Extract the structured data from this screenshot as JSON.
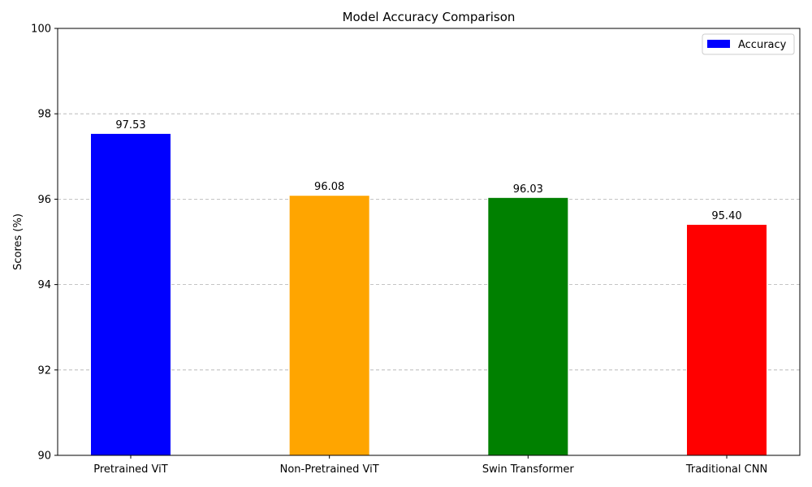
{
  "chart_data": {
    "type": "bar",
    "title": "Model Accuracy Comparison",
    "xlabel": "",
    "ylabel": "Scores (%)",
    "ylim": [
      90,
      100
    ],
    "yticks": [
      90,
      92,
      94,
      96,
      98,
      100
    ],
    "grid": "y-dashed",
    "legend_position": "top-right",
    "categories": [
      "Pretrained ViT",
      "Non-Pretrained ViT",
      "Swin Transformer",
      "Traditional CNN"
    ],
    "series": [
      {
        "name": "Accuracy",
        "values": [
          97.53,
          96.08,
          96.03,
          95.4
        ],
        "labels": [
          "97.53",
          "96.08",
          "96.03",
          "95.40"
        ],
        "colors": [
          "#0000ff",
          "#ffa500",
          "#008000",
          "#ff0000"
        ]
      }
    ]
  }
}
